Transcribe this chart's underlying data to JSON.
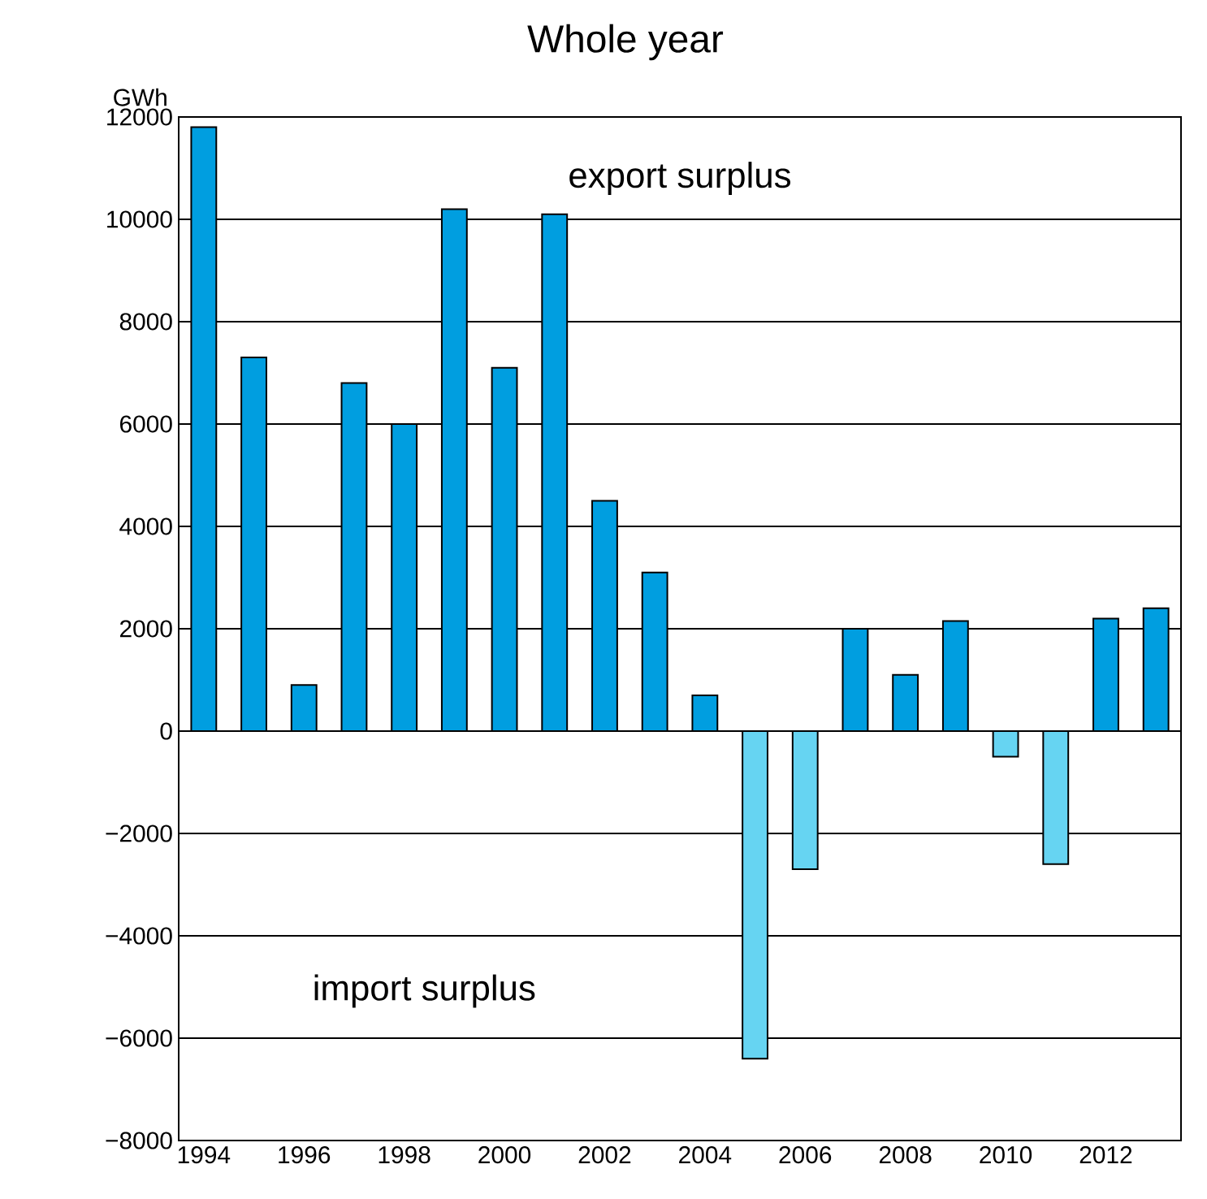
{
  "chart_data": {
    "type": "bar",
    "title": "Whole year",
    "ylabel": "GWh",
    "categories": [
      "1994",
      null,
      "1996",
      null,
      "1998",
      null,
      "2000",
      null,
      "2002",
      null,
      "2004",
      null,
      "2006",
      null,
      "2008",
      null,
      "2010",
      null,
      "2012",
      null
    ],
    "values": [
      11800,
      7300,
      900,
      6800,
      6000,
      10200,
      7100,
      10100,
      4500,
      3100,
      700,
      -6400,
      -2700,
      2000,
      1100,
      2150,
      -500,
      -2600,
      2200,
      2400
    ],
    "colors": [
      "#009ee0",
      "#009ee0",
      "#009ee0",
      "#009ee0",
      "#009ee0",
      "#009ee0",
      "#009ee0",
      "#009ee0",
      "#009ee0",
      "#009ee0",
      "#009ee0",
      "#66d4f2",
      "#66d4f2",
      "#009ee0",
      "#009ee0",
      "#009ee0",
      "#66d4f2",
      "#66d4f2",
      "#009ee0",
      "#009ee0"
    ],
    "ylim": [
      -8000,
      12000
    ],
    "yticks": [
      {
        "value": -8000,
        "label": "−8000"
      },
      {
        "value": -6000,
        "label": "−6000"
      },
      {
        "value": -4000,
        "label": "−4000"
      },
      {
        "value": -2000,
        "label": "−2000"
      },
      0,
      2000,
      4000,
      6000,
      8000,
      10000,
      12000
    ],
    "grid": "y",
    "annotations": [
      "export surplus",
      "import surplus"
    ]
  }
}
